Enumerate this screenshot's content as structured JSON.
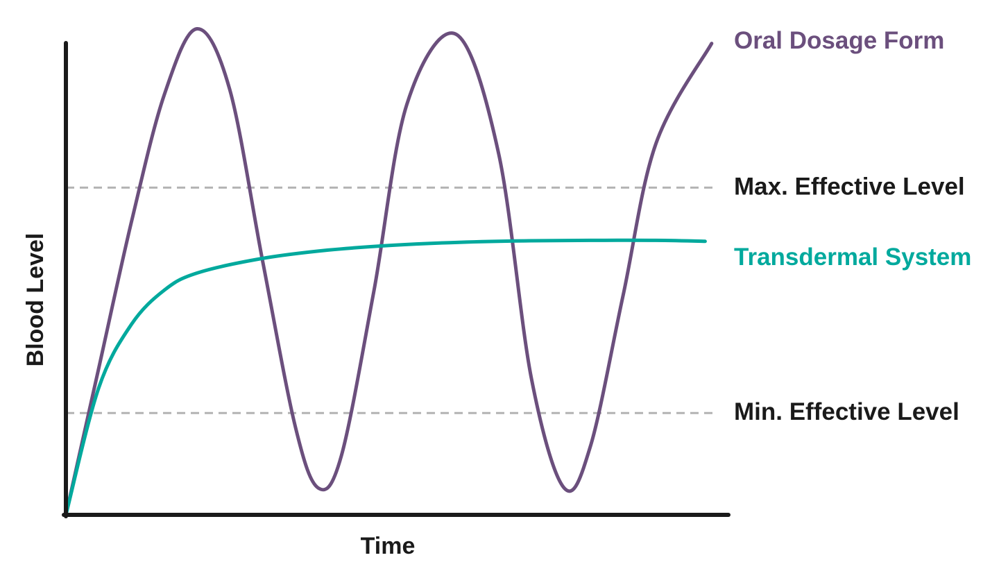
{
  "chart_data": {
    "type": "line",
    "xlabel": "Time",
    "ylabel": "Blood Level",
    "xlim": [
      0,
      10
    ],
    "ylim": [
      0,
      10
    ],
    "grid": false,
    "legend": "right, inline labels",
    "reference_lines": [
      {
        "name": "Max. Effective Level",
        "y": 6.7,
        "style": "dashed",
        "color": "#b3b3b3"
      },
      {
        "name": "Min. Effective Level",
        "y": 2.085,
        "style": "dashed",
        "color": "#b3b3b3"
      }
    ],
    "series": [
      {
        "name": "Oral Dosage Form",
        "color": "#6b4f7d",
        "points": [
          [
            0,
            0
          ],
          [
            0.5,
            3.0
          ],
          [
            1.0,
            6.0
          ],
          [
            1.5,
            8.6
          ],
          [
            2.0,
            9.95
          ],
          [
            2.5,
            8.7
          ],
          [
            3.0,
            5.2
          ],
          [
            3.5,
            1.8
          ],
          [
            3.85,
            0.55
          ],
          [
            4.2,
            1.2
          ],
          [
            4.7,
            4.6
          ],
          [
            5.2,
            8.4
          ],
          [
            5.95,
            9.84
          ],
          [
            6.6,
            7.4
          ],
          [
            7.1,
            2.8
          ],
          [
            7.6,
            0.55
          ],
          [
            8.0,
            1.4
          ],
          [
            8.5,
            4.5
          ],
          [
            9.0,
            7.6
          ],
          [
            9.85,
            9.65
          ]
        ]
      },
      {
        "name": "Transdermal System",
        "color": "#00a99d",
        "points": [
          [
            0,
            0
          ],
          [
            0.5,
            2.6
          ],
          [
            1.0,
            3.9
          ],
          [
            1.5,
            4.6
          ],
          [
            2.0,
            4.95
          ],
          [
            3.0,
            5.25
          ],
          [
            4.0,
            5.42
          ],
          [
            5.0,
            5.52
          ],
          [
            6.0,
            5.58
          ],
          [
            7.0,
            5.61
          ],
          [
            8.0,
            5.62
          ],
          [
            9.0,
            5.62
          ],
          [
            9.75,
            5.6
          ]
        ]
      }
    ]
  }
}
